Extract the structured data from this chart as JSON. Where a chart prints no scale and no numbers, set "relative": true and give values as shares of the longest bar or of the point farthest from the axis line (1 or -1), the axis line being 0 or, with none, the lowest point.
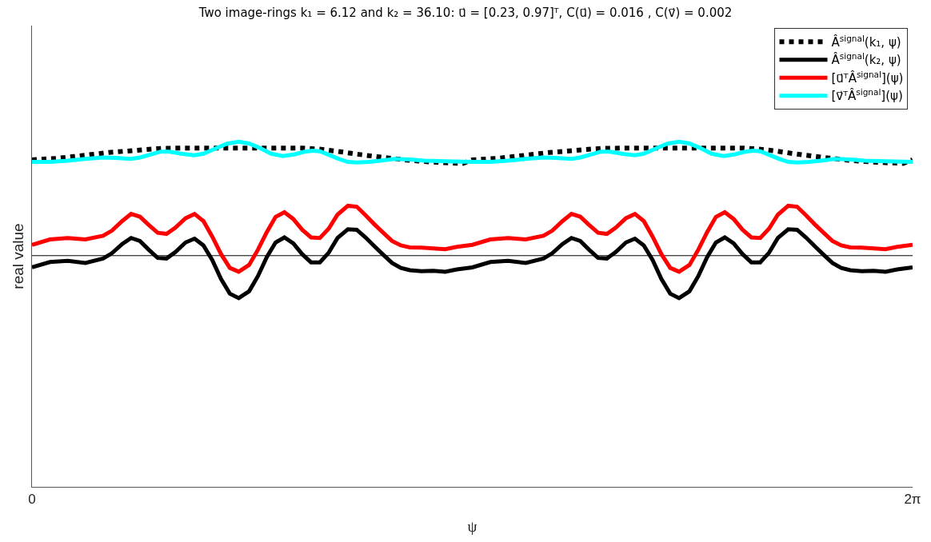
{
  "chart_data": {
    "type": "line",
    "title": "Two image-rings k₁ = 6.12 and k₂ = 36.10: u⃗ = [0.23, 0.97]ᵀ, C(u⃗) = 0.016 , C(v⃗) = 0.002",
    "xlabel": "ψ",
    "ylabel": "real value",
    "relative": true,
    "xlim": [
      0,
      6.2832
    ],
    "xticks": [
      0,
      {
        "value": 6.2832,
        "label": "2π"
      }
    ],
    "grid": false,
    "legend": "top right",
    "marker": "none",
    "ref_lines": [
      {
        "axis": "y",
        "value": 0,
        "color": "#000000"
      }
    ],
    "series": [
      {
        "name": "Â$^{signal}$(k₁, ψ)",
        "color": "#000000",
        "line_style": "dotted",
        "x": [
          0.0,
          0.171,
          0.297,
          0.423,
          0.549,
          0.676,
          0.802,
          0.928,
          1.054,
          1.181,
          1.307,
          1.433,
          1.559,
          1.686,
          1.812,
          1.938,
          2.043,
          2.169,
          2.296,
          2.422,
          2.548,
          2.674,
          2.801,
          2.948,
          3.074,
          3.142,
          3.313,
          3.439,
          3.565,
          3.691,
          3.818,
          3.944,
          4.07,
          4.196,
          4.323,
          4.449,
          4.575,
          4.701,
          4.828,
          4.954,
          5.08,
          5.185,
          5.311,
          5.438,
          5.564,
          5.69,
          5.816,
          5.943,
          6.09,
          6.216,
          6.283
        ],
        "values": [
          0.841,
          0.854,
          0.87,
          0.888,
          0.906,
          0.918,
          0.931,
          0.942,
          0.944,
          0.944,
          0.944,
          0.944,
          0.944,
          0.944,
          0.944,
          0.944,
          0.936,
          0.918,
          0.895,
          0.875,
          0.857,
          0.839,
          0.826,
          0.816,
          0.81,
          0.841,
          0.854,
          0.87,
          0.888,
          0.906,
          0.918,
          0.931,
          0.942,
          0.944,
          0.944,
          0.944,
          0.944,
          0.944,
          0.944,
          0.944,
          0.944,
          0.936,
          0.918,
          0.895,
          0.875,
          0.857,
          0.839,
          0.826,
          0.816,
          0.81,
          0.841
        ]
      },
      {
        "name": "Â$^{signal}$(k₂, ψ)",
        "color": "#000000",
        "line_style": "solid",
        "x": [
          0.0,
          0.128,
          0.255,
          0.381,
          0.507,
          0.57,
          0.644,
          0.707,
          0.77,
          0.833,
          0.897,
          0.96,
          1.023,
          1.096,
          1.16,
          1.223,
          1.286,
          1.349,
          1.412,
          1.475,
          1.549,
          1.612,
          1.675,
          1.738,
          1.801,
          1.864,
          1.928,
          1.991,
          2.054,
          2.117,
          2.18,
          2.254,
          2.317,
          2.38,
          2.443,
          2.506,
          2.569,
          2.632,
          2.696,
          2.779,
          2.864,
          2.948,
          3.032,
          3.142,
          3.27,
          3.397,
          3.523,
          3.649,
          3.712,
          3.786,
          3.849,
          3.912,
          3.975,
          4.039,
          4.102,
          4.165,
          4.238,
          4.302,
          4.365,
          4.428,
          4.491,
          4.554,
          4.617,
          4.691,
          4.754,
          4.817,
          4.88,
          4.943,
          5.006,
          5.07,
          5.133,
          5.196,
          5.259,
          5.322,
          5.396,
          5.459,
          5.522,
          5.585,
          5.648,
          5.711,
          5.774,
          5.838,
          5.921,
          6.006,
          6.09,
          6.174,
          6.283
        ],
        "values": [
          -0.103,
          -0.056,
          -0.046,
          -0.064,
          -0.025,
          0.021,
          0.103,
          0.155,
          0.129,
          0.052,
          -0.02,
          -0.025,
          0.031,
          0.116,
          0.149,
          0.09,
          -0.038,
          -0.205,
          -0.334,
          -0.373,
          -0.313,
          -0.18,
          -0.013,
          0.116,
          0.16,
          0.108,
          0.013,
          -0.059,
          -0.059,
          0.026,
          0.155,
          0.232,
          0.227,
          0.16,
          0.083,
          0.008,
          -0.064,
          -0.108,
          -0.128,
          -0.136,
          -0.133,
          -0.141,
          -0.121,
          -0.103,
          -0.056,
          -0.046,
          -0.064,
          -0.025,
          0.021,
          0.103,
          0.155,
          0.129,
          0.052,
          -0.02,
          -0.025,
          0.031,
          0.116,
          0.149,
          0.09,
          -0.038,
          -0.205,
          -0.334,
          -0.373,
          -0.313,
          -0.18,
          -0.013,
          0.116,
          0.16,
          0.108,
          0.013,
          -0.059,
          -0.059,
          0.026,
          0.155,
          0.232,
          0.227,
          0.16,
          0.083,
          0.008,
          -0.064,
          -0.108,
          -0.128,
          -0.136,
          -0.133,
          -0.141,
          -0.121,
          -0.103
        ]
      },
      {
        "name": "[u⃗ᵀÂ$^{signal}$](ψ)",
        "color": "#ff0000",
        "line_style": "solid",
        "x": [
          0.0,
          0.128,
          0.255,
          0.381,
          0.507,
          0.57,
          0.644,
          0.707,
          0.77,
          0.833,
          0.897,
          0.96,
          1.023,
          1.096,
          1.16,
          1.223,
          1.286,
          1.349,
          1.412,
          1.475,
          1.549,
          1.612,
          1.675,
          1.738,
          1.801,
          1.864,
          1.928,
          1.991,
          2.054,
          2.117,
          2.18,
          2.254,
          2.317,
          2.38,
          2.443,
          2.506,
          2.569,
          2.632,
          2.696,
          2.779,
          2.864,
          2.948,
          3.032,
          3.142,
          3.27,
          3.397,
          3.523,
          3.649,
          3.712,
          3.786,
          3.849,
          3.912,
          3.975,
          4.039,
          4.102,
          4.165,
          4.238,
          4.302,
          4.365,
          4.428,
          4.491,
          4.554,
          4.617,
          4.691,
          4.754,
          4.817,
          4.88,
          4.943,
          5.006,
          5.07,
          5.133,
          5.196,
          5.259,
          5.322,
          5.396,
          5.459,
          5.522,
          5.585,
          5.648,
          5.711,
          5.774,
          5.838,
          5.921,
          6.006,
          6.09,
          6.174,
          6.283
        ],
        "values": [
          0.095,
          0.142,
          0.155,
          0.142,
          0.175,
          0.219,
          0.304,
          0.366,
          0.342,
          0.27,
          0.201,
          0.191,
          0.245,
          0.329,
          0.366,
          0.304,
          0.167,
          0.013,
          -0.108,
          -0.141,
          -0.082,
          0.052,
          0.206,
          0.34,
          0.381,
          0.322,
          0.227,
          0.16,
          0.155,
          0.237,
          0.36,
          0.438,
          0.43,
          0.355,
          0.275,
          0.201,
          0.129,
          0.09,
          0.072,
          0.07,
          0.064,
          0.057,
          0.077,
          0.095,
          0.142,
          0.155,
          0.142,
          0.175,
          0.219,
          0.304,
          0.366,
          0.342,
          0.27,
          0.201,
          0.191,
          0.245,
          0.329,
          0.366,
          0.304,
          0.167,
          0.013,
          -0.108,
          -0.141,
          -0.082,
          0.052,
          0.206,
          0.34,
          0.381,
          0.322,
          0.227,
          0.16,
          0.155,
          0.237,
          0.36,
          0.438,
          0.43,
          0.355,
          0.275,
          0.201,
          0.129,
          0.09,
          0.072,
          0.07,
          0.064,
          0.057,
          0.077,
          0.095
        ]
      },
      {
        "name": "[v⃗ᵀÂ$^{signal}$](ψ)",
        "color": "#00ffff",
        "line_style": "solid",
        "x": [
          0.0,
          0.128,
          0.255,
          0.381,
          0.507,
          0.591,
          0.707,
          0.77,
          0.844,
          0.918,
          0.981,
          1.075,
          1.16,
          1.223,
          1.307,
          1.391,
          1.475,
          1.549,
          1.622,
          1.707,
          1.791,
          1.875,
          1.938,
          2.001,
          2.054,
          2.127,
          2.19,
          2.254,
          2.317,
          2.401,
          2.485,
          2.59,
          2.696,
          2.801,
          2.906,
          3.011,
          3.142,
          3.27,
          3.397,
          3.523,
          3.649,
          3.733,
          3.849,
          3.912,
          3.986,
          4.06,
          4.123,
          4.217,
          4.302,
          4.365,
          4.449,
          4.533,
          4.617,
          4.691,
          4.764,
          4.849,
          4.933,
          5.017,
          5.08,
          5.143,
          5.196,
          5.269,
          5.332,
          5.396,
          5.459,
          5.543,
          5.627,
          5.732,
          5.838,
          5.943,
          6.048,
          6.153,
          6.283
        ],
        "values": [
          0.823,
          0.823,
          0.834,
          0.849,
          0.862,
          0.859,
          0.849,
          0.862,
          0.888,
          0.913,
          0.913,
          0.893,
          0.882,
          0.895,
          0.939,
          0.983,
          1.0,
          0.985,
          0.947,
          0.895,
          0.875,
          0.89,
          0.911,
          0.921,
          0.916,
          0.88,
          0.849,
          0.823,
          0.818,
          0.823,
          0.834,
          0.849,
          0.844,
          0.834,
          0.831,
          0.826,
          0.823,
          0.823,
          0.834,
          0.849,
          0.862,
          0.859,
          0.849,
          0.862,
          0.888,
          0.913,
          0.913,
          0.893,
          0.882,
          0.895,
          0.939,
          0.983,
          1.0,
          0.985,
          0.947,
          0.895,
          0.875,
          0.89,
          0.911,
          0.921,
          0.916,
          0.88,
          0.849,
          0.823,
          0.818,
          0.823,
          0.834,
          0.849,
          0.844,
          0.834,
          0.831,
          0.826,
          0.823
        ]
      }
    ]
  }
}
